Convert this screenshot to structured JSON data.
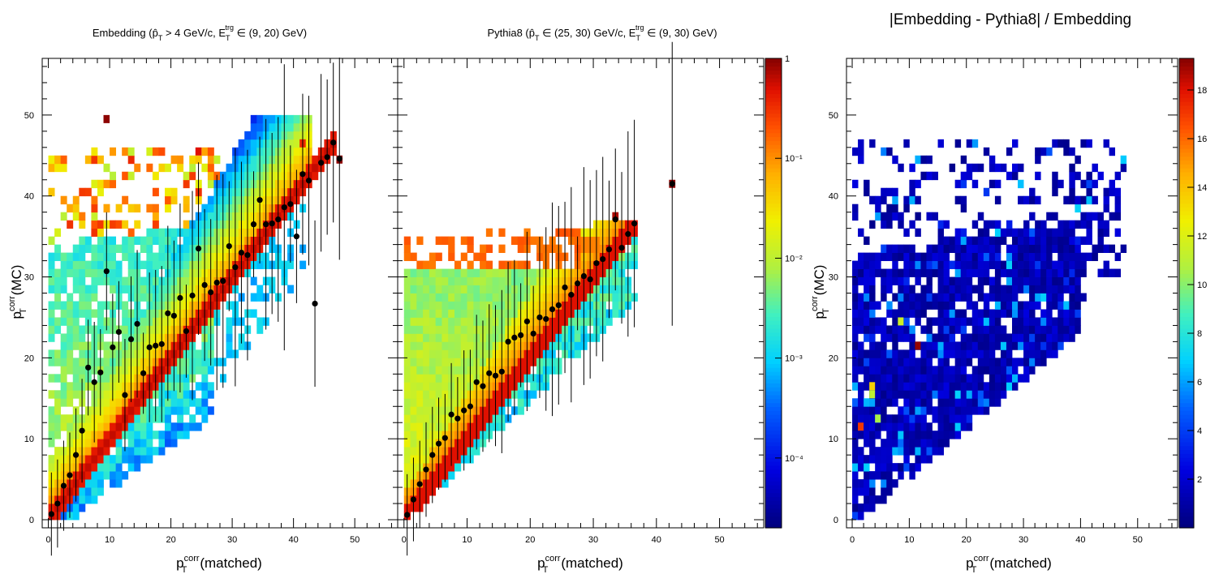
{
  "chart_data": [
    {
      "type": "heatmap",
      "title": "Embedding (p̂T > 4 GeV/c, ETtrg ∈ (9, 20) GeV)",
      "title_parts": {
        "pre": "Embedding (",
        "hat": "p̂",
        "sub": "T",
        "mid": " > 4 GeV/c, E",
        "sub2": "T",
        "sup2": "trg",
        "post": " ∈ (9, 20) GeV)"
      },
      "xlabel": {
        "base": "p",
        "sup": "corr",
        "sub": "T",
        "suffix": "(matched)"
      },
      "ylabel": {
        "base": "p",
        "sup": "corr",
        "sub": "T",
        "suffix": "(MC)"
      },
      "xlim": [
        -1,
        57
      ],
      "ylim": [
        -1,
        57
      ],
      "xticks": [
        0,
        10,
        20,
        30,
        40,
        50
      ],
      "yticks": [
        0,
        10,
        20,
        30,
        40,
        50
      ],
      "z_scale": "log",
      "profile_means": [
        [
          0.5,
          0.7
        ],
        [
          1.5,
          2.0
        ],
        [
          2.5,
          4.2
        ],
        [
          3.5,
          5.5
        ],
        [
          4.5,
          8.0
        ],
        [
          5.5,
          11.0
        ],
        [
          6.5,
          18.8
        ],
        [
          7.5,
          17.0
        ],
        [
          8.5,
          18.2
        ],
        [
          9.5,
          30.7
        ],
        [
          10.5,
          21.3
        ],
        [
          11.5,
          23.2
        ],
        [
          12.5,
          15.4
        ],
        [
          13.5,
          22.3
        ],
        [
          14.5,
          24.2
        ],
        [
          15.5,
          18.1
        ],
        [
          16.5,
          21.3
        ],
        [
          17.5,
          21.5
        ],
        [
          18.5,
          21.7
        ],
        [
          19.5,
          25.5
        ],
        [
          20.5,
          25.2
        ],
        [
          21.5,
          27.4
        ],
        [
          22.5,
          23.3
        ],
        [
          23.5,
          27.7
        ],
        [
          24.5,
          33.5
        ],
        [
          25.5,
          29.0
        ],
        [
          26.5,
          28.1
        ],
        [
          27.5,
          29.3
        ],
        [
          28.5,
          29.5
        ],
        [
          29.5,
          33.8
        ],
        [
          30.5,
          31.2
        ],
        [
          31.5,
          33.0
        ],
        [
          32.5,
          32.7
        ],
        [
          33.5,
          36.5
        ],
        [
          34.5,
          39.5
        ],
        [
          35.5,
          36.5
        ],
        [
          36.5,
          36.6
        ],
        [
          37.5,
          37.1
        ],
        [
          38.5,
          38.6
        ],
        [
          39.5,
          39.0
        ],
        [
          40.5,
          35.0
        ],
        [
          41.5,
          42.7
        ],
        [
          42.5,
          41.9
        ],
        [
          43.5,
          26.7
        ],
        [
          44.5,
          44.1
        ],
        [
          45.5,
          44.8
        ],
        [
          46.5,
          46.6
        ],
        [
          47.5,
          44.6
        ]
      ]
    },
    {
      "type": "heatmap",
      "title": "Pythia8 (p̂T ∈ (25, 30) GeV/c, ETtrg ∈ (9, 30) GeV)",
      "title_parts": {
        "pre": "Pythia8 (",
        "hat": "p̂",
        "sub": "T",
        "mid": " ∈ (25, 30) GeV/c, E",
        "sub2": "T",
        "sup2": "trg",
        "post": " ∈ (9, 30) GeV)"
      },
      "xlabel": {
        "base": "p",
        "sup": "corr",
        "sub": "T",
        "suffix": "(matched)"
      },
      "xlim": [
        -1,
        57
      ],
      "xticks": [
        0,
        10,
        20,
        30,
        40,
        50
      ],
      "z_scale": "log",
      "z_range": [
        2e-05,
        1
      ],
      "colorbar_ticks": [
        "1",
        "10⁻¹",
        "10⁻²",
        "10⁻³",
        "10⁻⁴"
      ],
      "profile_means": [
        [
          0.5,
          0.6
        ],
        [
          1.5,
          2.5
        ],
        [
          2.5,
          4.4
        ],
        [
          3.5,
          6.2
        ],
        [
          4.5,
          8.0
        ],
        [
          5.5,
          9.4
        ],
        [
          6.5,
          10.1
        ],
        [
          7.5,
          13.0
        ],
        [
          8.5,
          12.5
        ],
        [
          9.5,
          13.5
        ],
        [
          10.5,
          14.0
        ],
        [
          11.5,
          17.0
        ],
        [
          12.5,
          16.5
        ],
        [
          13.5,
          18.1
        ],
        [
          14.5,
          17.8
        ],
        [
          15.5,
          18.3
        ],
        [
          16.5,
          22.0
        ],
        [
          17.5,
          22.5
        ],
        [
          18.5,
          22.8
        ],
        [
          19.5,
          24.5
        ],
        [
          20.5,
          23.0
        ],
        [
          21.5,
          25.0
        ],
        [
          22.5,
          24.8
        ],
        [
          23.5,
          26.0
        ],
        [
          24.5,
          26.5
        ],
        [
          25.5,
          28.7
        ],
        [
          26.5,
          27.8
        ],
        [
          27.5,
          29.2
        ],
        [
          28.5,
          30.1
        ],
        [
          29.5,
          29.7
        ],
        [
          30.5,
          31.7
        ],
        [
          31.5,
          32.2
        ],
        [
          32.5,
          33.4
        ],
        [
          33.5,
          37.1
        ],
        [
          34.5,
          33.6
        ],
        [
          35.5,
          35.3
        ],
        [
          36.5,
          36.6
        ],
        [
          42.5,
          41.5
        ]
      ]
    },
    {
      "type": "heatmap",
      "title": "|Embedding - Pythia8| / Embedding",
      "xlabel": {
        "base": "p",
        "sup": "corr",
        "sub": "T",
        "suffix": "(matched)"
      },
      "ylabel": {
        "base": "p",
        "sup": "corr",
        "sub": "T",
        "suffix": "(MC)"
      },
      "xlim": [
        -1,
        57
      ],
      "ylim": [
        -1,
        57
      ],
      "xticks": [
        0,
        10,
        20,
        30,
        40,
        50
      ],
      "yticks": [
        0,
        10,
        20,
        30,
        40,
        50
      ],
      "z_scale": "linear",
      "z_range": [
        0,
        19.3
      ],
      "colorbar_ticks": [
        "2",
        "4",
        "6",
        "8",
        "10",
        "12",
        "14",
        "16",
        "18"
      ],
      "highlight_cells": [
        [
          11.5,
          21.5,
          19.0
        ],
        [
          1.5,
          11.5,
          17.0
        ],
        [
          3.5,
          16.5,
          13.5
        ],
        [
          8.5,
          24.5,
          11.5
        ],
        [
          4.5,
          12.5,
          10.5
        ],
        [
          3.5,
          15.5,
          11.0
        ]
      ]
    }
  ],
  "colors": {
    "frame": "#000000",
    "background": "#ffffff"
  }
}
